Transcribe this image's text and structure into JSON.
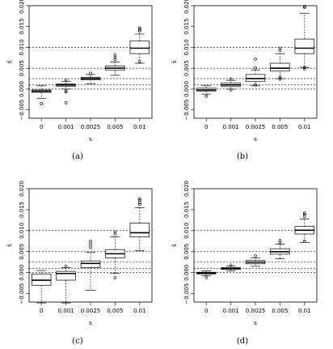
{
  "chart_data": [
    {
      "type": "boxplot",
      "caption": "(a)",
      "xlabel": "s",
      "ylabel": "ŝ",
      "categories": [
        "0",
        "0.001",
        "0.0025",
        "0.005",
        "0.01"
      ],
      "ylim": [
        -0.007,
        0.02
      ],
      "yticks": [
        "−0.005",
        "0.000",
        "0.005",
        "0.010",
        "0.015",
        "0.020"
      ],
      "ytick_values": [
        -0.005,
        0.0,
        0.005,
        0.01,
        0.015,
        0.02
      ],
      "reference_lines": [
        0,
        0.001,
        0.0025,
        0.005,
        0.01
      ],
      "boxes": [
        {
          "whisker_low": -0.0022,
          "q1": -0.0008,
          "median": -0.0005,
          "q3": -0.0002,
          "whisker_high": 0.0008,
          "outliers": [
            -0.0035
          ]
        },
        {
          "whisker_low": 0.0,
          "q1": 0.0007,
          "median": 0.001,
          "q3": 0.0012,
          "whisker_high": 0.0018,
          "outliers": [
            -0.0004,
            -0.0007,
            -0.0033,
            0.0022
          ]
        },
        {
          "whisker_low": 0.0013,
          "q1": 0.0022,
          "median": 0.0025,
          "q3": 0.0028,
          "whisker_high": 0.0035,
          "outliers": [
            0.0038
          ]
        },
        {
          "whisker_low": 0.0033,
          "q1": 0.0045,
          "median": 0.005,
          "q3": 0.0055,
          "whisker_high": 0.0065,
          "outliers": [
            0.0071,
            0.0076,
            0.0082
          ]
        },
        {
          "whisker_low": 0.0062,
          "q1": 0.0085,
          "median": 0.0098,
          "q3": 0.0115,
          "whisker_high": 0.0132,
          "outliers": [
            0.0139,
            0.0143,
            0.0147,
            0.0066
          ]
        }
      ]
    },
    {
      "type": "boxplot",
      "caption": "(b)",
      "xlabel": "s",
      "ylabel": "ŝ",
      "categories": [
        "0",
        "0.001",
        "0.0025",
        "0.005",
        "0.01"
      ],
      "ylim": [
        -0.007,
        0.02
      ],
      "yticks": [
        "−0.005",
        "0.000",
        "0.005",
        "0.010",
        "0.015",
        "0.020"
      ],
      "ytick_values": [
        -0.005,
        0.0,
        0.005,
        0.01,
        0.015,
        0.02
      ],
      "reference_lines": [
        0,
        0.001,
        0.0025,
        0.005,
        0.01
      ],
      "boxes": [
        {
          "whisker_low": -0.0012,
          "q1": -0.0005,
          "median": -0.0002,
          "q3": 0.0002,
          "whisker_high": 0.0008,
          "outliers": [
            -0.0017
          ]
        },
        {
          "whisker_low": 0.0,
          "q1": 0.0006,
          "median": 0.001,
          "q3": 0.0014,
          "whisker_high": 0.0021,
          "outliers": [
            0.0024,
            -0.0002
          ]
        },
        {
          "whisker_low": 0.0008,
          "q1": 0.0018,
          "median": 0.0025,
          "q3": 0.0035,
          "whisker_high": 0.0045,
          "outliers": [
            0.0051,
            0.0072,
            0.001
          ]
        },
        {
          "whisker_low": 0.0025,
          "q1": 0.0043,
          "median": 0.005,
          "q3": 0.0062,
          "whisker_high": 0.0085,
          "outliers": [
            0.0093,
            0.0098,
            0.0024,
            0.0028
          ]
        },
        {
          "whisker_low": 0.0052,
          "q1": 0.0085,
          "median": 0.0098,
          "q3": 0.012,
          "whisker_high": 0.0182,
          "outliers": [
            0.0196,
            0.0198,
            0.0048,
            0.0052
          ]
        }
      ]
    },
    {
      "type": "boxplot",
      "caption": "(c)",
      "xlabel": "s",
      "ylabel": "ŝ",
      "categories": [
        "0",
        "0.001",
        "0.0025",
        "0.005",
        "0.01"
      ],
      "ylim": [
        -0.007,
        0.02
      ],
      "yticks": [
        "−0.005",
        "0.000",
        "0.005",
        "0.010",
        "0.015",
        "0.020"
      ],
      "ytick_values": [
        -0.005,
        0.0,
        0.005,
        0.01,
        0.015,
        0.02
      ],
      "reference_lines": [
        0,
        0.001,
        0.0025,
        0.005,
        0.01
      ],
      "boxes": [
        {
          "whisker_low": -0.0072,
          "q1": -0.003,
          "median": -0.0018,
          "q3": -0.0003,
          "whisker_high": 0.0005,
          "outliers": []
        },
        {
          "whisker_low": -0.0072,
          "q1": -0.0018,
          "median": -0.0002,
          "q3": 0.0003,
          "whisker_high": 0.0012,
          "outliers": [
            0.0015
          ]
        },
        {
          "whisker_low": -0.0042,
          "q1": 0.0012,
          "median": 0.0022,
          "q3": 0.0028,
          "whisker_high": 0.0048,
          "outliers": [
            0.006,
            0.0068,
            0.0075
          ]
        },
        {
          "whisker_low": -0.0002,
          "q1": 0.0035,
          "median": 0.0045,
          "q3": 0.0055,
          "whisker_high": 0.0085,
          "outliers": [
            0.0092,
            0.0097,
            -0.0012
          ]
        },
        {
          "whisker_low": 0.0052,
          "q1": 0.0085,
          "median": 0.0095,
          "q3": 0.0118,
          "whisker_high": 0.0155,
          "outliers": [
            0.0162,
            0.0167,
            0.0172,
            0.0176
          ]
        }
      ]
    },
    {
      "type": "boxplot",
      "caption": "(d)",
      "xlabel": "s",
      "ylabel": "ŝ",
      "categories": [
        "0",
        "0.001",
        "0.0025",
        "0.005",
        "0.01"
      ],
      "ylim": [
        -0.007,
        0.02
      ],
      "yticks": [
        "−0.005",
        "0.000",
        "0.005",
        "0.010",
        "0.015",
        "0.020"
      ],
      "ytick_values": [
        -0.005,
        0.0,
        0.005,
        0.01,
        0.015,
        0.02
      ],
      "reference_lines": [
        0,
        0.001,
        0.0025,
        0.005,
        0.01
      ],
      "boxes": [
        {
          "whisker_low": -0.0007,
          "q1": -0.0003,
          "median": -0.0001,
          "q3": 0.0001,
          "whisker_high": 0.0004,
          "outliers": [
            -0.0012
          ]
        },
        {
          "whisker_low": 0.0004,
          "q1": 0.0008,
          "median": 0.001,
          "q3": 0.0012,
          "whisker_high": 0.0016,
          "outliers": [
            0.0018
          ]
        },
        {
          "whisker_low": 0.0015,
          "q1": 0.0021,
          "median": 0.0025,
          "q3": 0.0029,
          "whisker_high": 0.0035,
          "outliers": [
            0.004
          ]
        },
        {
          "whisker_low": 0.0033,
          "q1": 0.0044,
          "median": 0.005,
          "q3": 0.0057,
          "whisker_high": 0.0068,
          "outliers": [
            0.0072,
            0.0077
          ]
        },
        {
          "whisker_low": 0.0072,
          "q1": 0.0092,
          "median": 0.0101,
          "q3": 0.011,
          "whisker_high": 0.0128,
          "outliers": [
            0.0134,
            0.0139,
            0.0142,
            0.0075
          ]
        }
      ]
    }
  ]
}
